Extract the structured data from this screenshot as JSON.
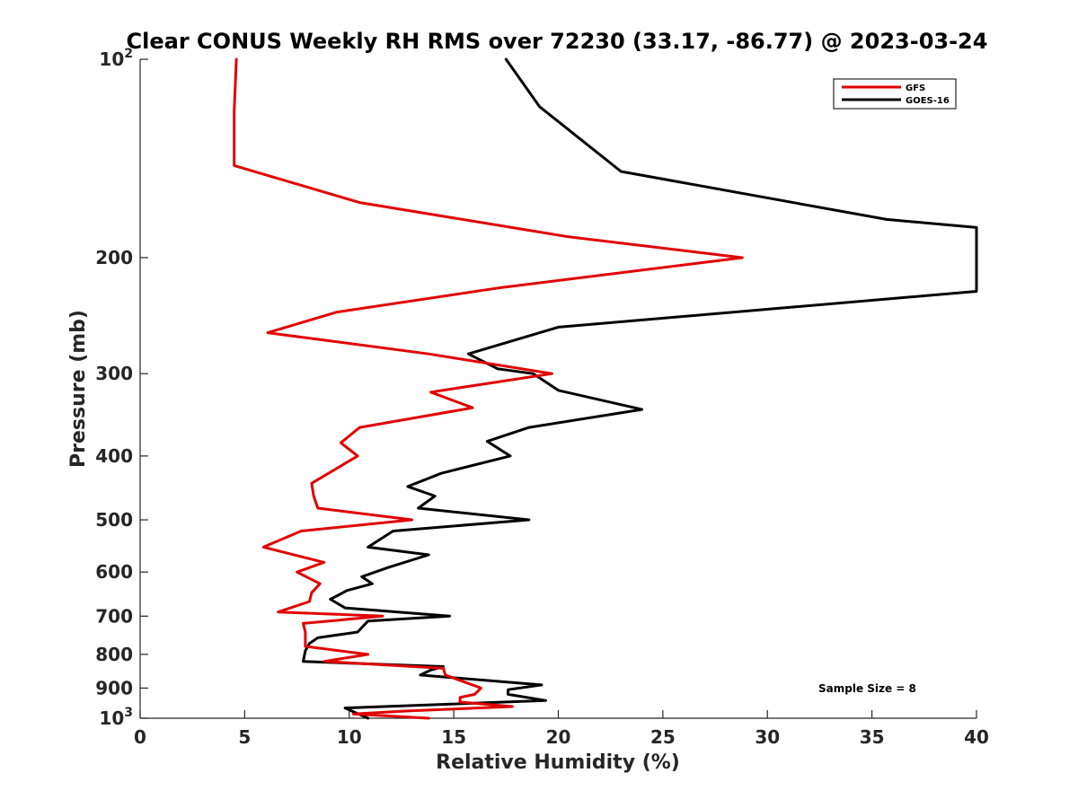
{
  "chart_data": {
    "type": "line",
    "title": "Clear CONUS Weekly RH RMS over 72230 (33.17, -86.77) @ 2023-03-24",
    "xlabel": "Relative Humidity (%)",
    "ylabel": "Pressure (mb)",
    "xlim": [
      0,
      40
    ],
    "ylim": [
      100,
      1000
    ],
    "yscale": "log",
    "yreversed": true,
    "grid": false,
    "xticks": [
      0,
      5,
      10,
      15,
      20,
      25,
      30,
      35,
      40
    ],
    "xtick_labels": [
      "0",
      "5",
      "10",
      "15",
      "20",
      "25",
      "30",
      "35",
      "40"
    ],
    "yticks": [
      {
        "value": 100,
        "base": "10",
        "exp": "2"
      },
      {
        "value": 200,
        "base": "200",
        "exp": ""
      },
      {
        "value": 300,
        "base": "300",
        "exp": ""
      },
      {
        "value": 400,
        "base": "400",
        "exp": ""
      },
      {
        "value": 500,
        "base": "500",
        "exp": ""
      },
      {
        "value": 600,
        "base": "600",
        "exp": ""
      },
      {
        "value": 700,
        "base": "700",
        "exp": ""
      },
      {
        "value": 800,
        "base": "800",
        "exp": ""
      },
      {
        "value": 900,
        "base": "900",
        "exp": ""
      },
      {
        "value": 1000,
        "base": "10",
        "exp": "3"
      }
    ],
    "legend_position": "top-right",
    "annotation": "Sample Size = 8",
    "series": [
      {
        "name": "GFS",
        "color": "#e00000",
        "points": [
          [
            4.6,
            100
          ],
          [
            4.5,
            120
          ],
          [
            4.5,
            145
          ],
          [
            10.5,
            165
          ],
          [
            20.5,
            186
          ],
          [
            28.8,
            200
          ],
          [
            17.3,
            222
          ],
          [
            9.4,
            242
          ],
          [
            6.1,
            260
          ],
          [
            13.8,
            280
          ],
          [
            19.7,
            300
          ],
          [
            13.9,
            320
          ],
          [
            15.9,
            338
          ],
          [
            10.5,
            362
          ],
          [
            9.6,
            382
          ],
          [
            10.4,
            400
          ],
          [
            8.2,
            440
          ],
          [
            8.3,
            460
          ],
          [
            8.5,
            480
          ],
          [
            13.0,
            500
          ],
          [
            7.7,
            520
          ],
          [
            5.9,
            550
          ],
          [
            8.8,
            580
          ],
          [
            7.5,
            600
          ],
          [
            8.6,
            625
          ],
          [
            8.2,
            645
          ],
          [
            8.1,
            665
          ],
          [
            6.6,
            690
          ],
          [
            11.6,
            700
          ],
          [
            7.8,
            718
          ],
          [
            7.9,
            740
          ],
          [
            7.9,
            760
          ],
          [
            7.9,
            778
          ],
          [
            10.9,
            800
          ],
          [
            8.8,
            820
          ],
          [
            14.5,
            840
          ],
          [
            14.6,
            860
          ],
          [
            16.3,
            900
          ],
          [
            16.0,
            920
          ],
          [
            15.3,
            930
          ],
          [
            15.3,
            945
          ],
          [
            17.8,
            960
          ],
          [
            12.8,
            975
          ],
          [
            10.2,
            985
          ],
          [
            13.8,
            1000
          ]
        ]
      },
      {
        "name": "GOES-16",
        "color": "#000000",
        "points": [
          [
            17.5,
            100
          ],
          [
            19.1,
            118
          ],
          [
            23.0,
            148
          ],
          [
            35.7,
            175
          ],
          [
            40.0,
            180
          ],
          [
            40.0,
            225
          ],
          [
            20.0,
            255
          ],
          [
            15.7,
            280
          ],
          [
            17.1,
            295
          ],
          [
            18.8,
            300
          ],
          [
            20.0,
            318
          ],
          [
            24.0,
            340
          ],
          [
            18.6,
            362
          ],
          [
            16.6,
            380
          ],
          [
            17.7,
            400
          ],
          [
            14.4,
            425
          ],
          [
            12.8,
            445
          ],
          [
            14.1,
            460
          ],
          [
            13.3,
            480
          ],
          [
            18.6,
            500
          ],
          [
            12.1,
            520
          ],
          [
            10.9,
            550
          ],
          [
            13.8,
            565
          ],
          [
            11.9,
            590
          ],
          [
            10.6,
            610
          ],
          [
            11.1,
            625
          ],
          [
            9.9,
            640
          ],
          [
            9.1,
            660
          ],
          [
            9.8,
            680
          ],
          [
            14.8,
            700
          ],
          [
            10.9,
            712
          ],
          [
            10.4,
            740
          ],
          [
            8.5,
            755
          ],
          [
            8.1,
            770
          ],
          [
            7.9,
            790
          ],
          [
            7.8,
            820
          ],
          [
            14.5,
            835
          ],
          [
            13.9,
            845
          ],
          [
            13.4,
            860
          ],
          [
            19.2,
            890
          ],
          [
            17.6,
            905
          ],
          [
            17.6,
            920
          ],
          [
            19.4,
            940
          ],
          [
            9.8,
            965
          ],
          [
            10.9,
            1000
          ]
        ]
      }
    ]
  }
}
